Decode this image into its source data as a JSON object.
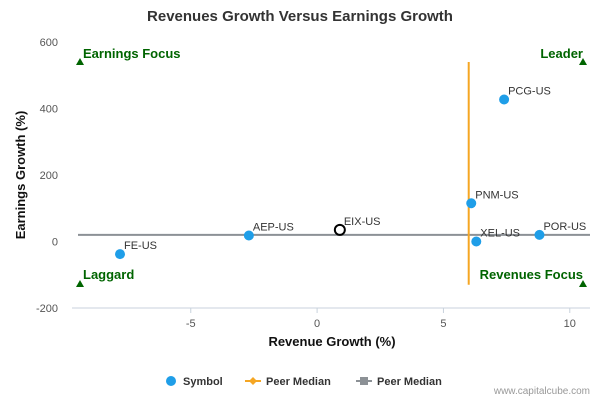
{
  "chart_data": {
    "type": "scatter",
    "title": "Revenues Growth Versus Earnings Growth",
    "xlabel": "Revenue Growth (%)",
    "ylabel": "Earnings Growth (%)",
    "xlim": [
      -9.7,
      10.8
    ],
    "ylim": [
      -200,
      600
    ],
    "xticks": [
      -5,
      0,
      5,
      10
    ],
    "yticks": [
      -200,
      0,
      200,
      400,
      600
    ],
    "grid": false,
    "series": [
      {
        "name": "Symbol",
        "points": [
          {
            "label": "PCG-US",
            "x": 7.4,
            "y": 427
          },
          {
            "label": "PNM-US",
            "x": 6.1,
            "y": 115
          },
          {
            "label": "EIX-US",
            "x": 0.9,
            "y": 35
          },
          {
            "label": "AEP-US",
            "x": -2.7,
            "y": 18
          },
          {
            "label": "FE-US",
            "x": -7.8,
            "y": -38
          },
          {
            "label": "XEL-US",
            "x": 6.3,
            "y": 0
          },
          {
            "label": "POR-US",
            "x": 8.8,
            "y": 20
          }
        ]
      }
    ],
    "highlight": "EIX-US",
    "peer_median_x": 6.0,
    "peer_median_y": 20,
    "peer_median_x_span": [
      -130,
      540
    ],
    "quadrants": {
      "top_left": "Earnings Focus",
      "top_right": "Leader",
      "bottom_left": "Laggard",
      "bottom_right": "Revenues Focus"
    },
    "legend": {
      "placement": "bottom-center",
      "items": [
        {
          "label": "Symbol",
          "kind": "dot"
        },
        {
          "label": "Peer Median",
          "kind": "orange-line"
        },
        {
          "label": "Peer Median",
          "kind": "gray-line"
        }
      ]
    },
    "credit": "www.capitalcube.com",
    "colors": {
      "point": "#1f9ee8",
      "highlight_stroke": "#000000",
      "peer_median_x": "#f5a623",
      "peer_median_y": "#8c9196",
      "quadrant_text": "#006400",
      "axis_line": "#c8d2dc"
    }
  }
}
